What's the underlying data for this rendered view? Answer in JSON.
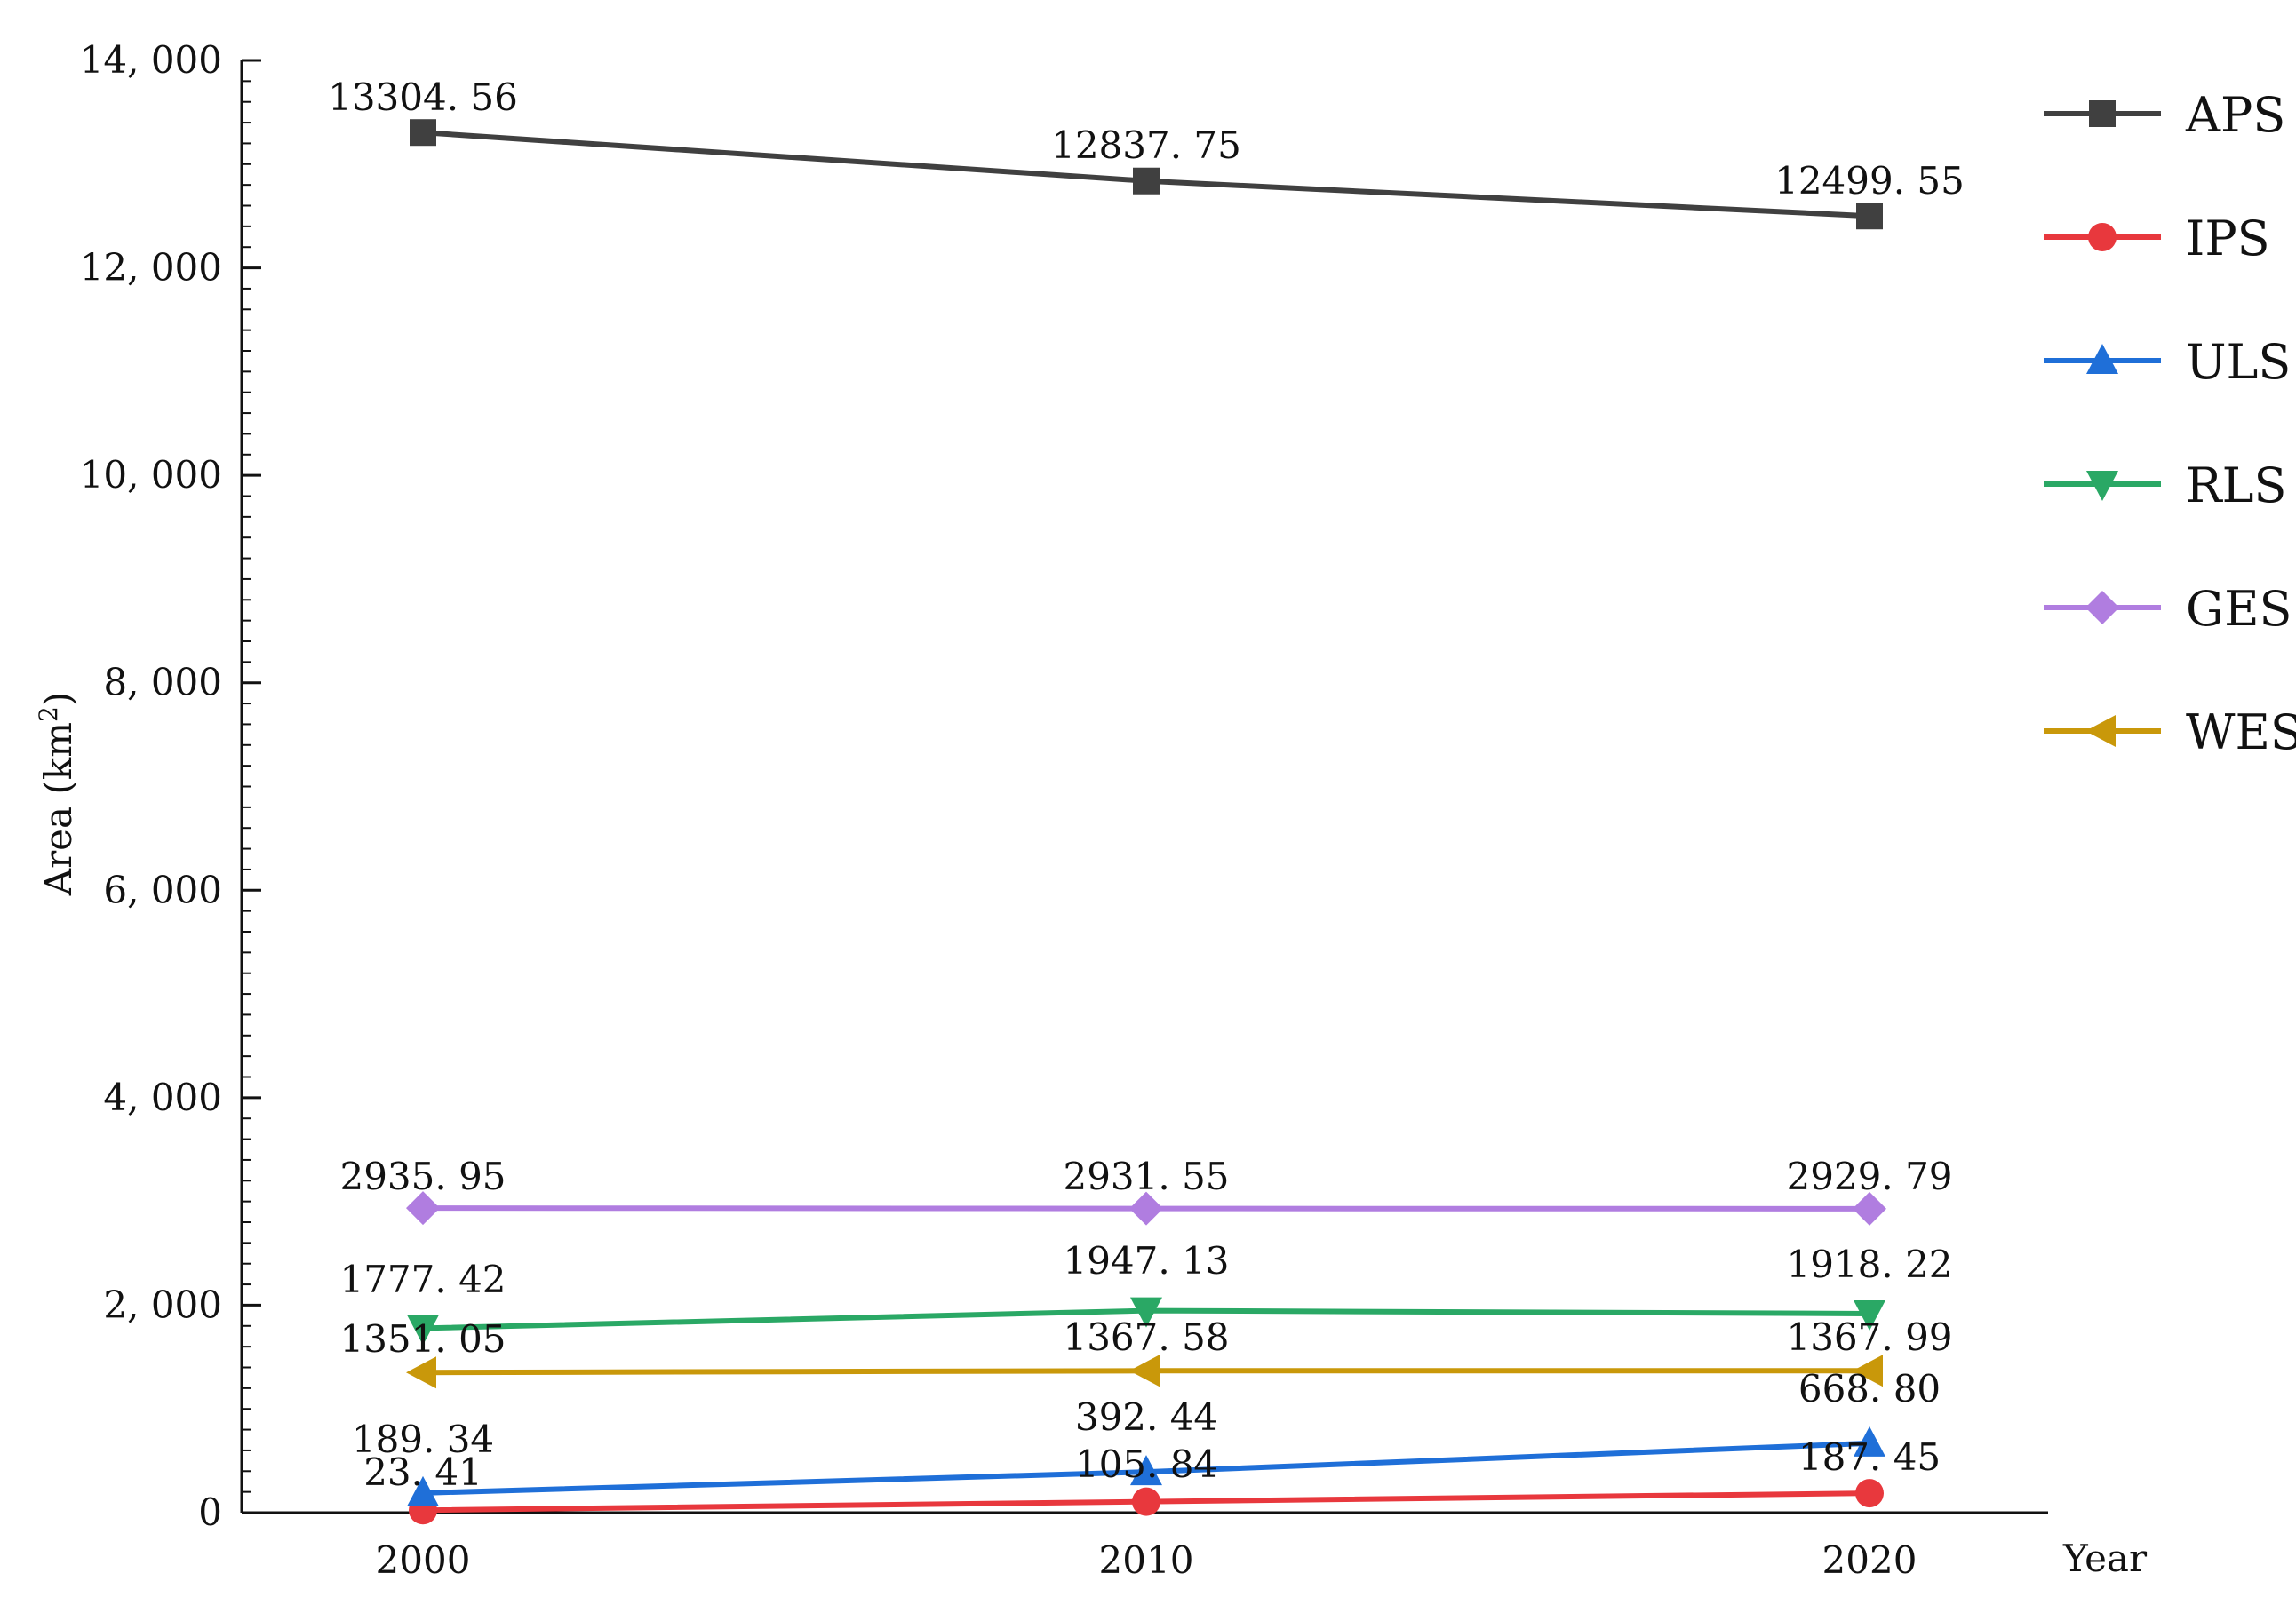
{
  "chart_data": {
    "type": "line",
    "title": "",
    "xlabel": "Year",
    "ylabel": "Area (km2)",
    "ylabel_base": "Area (km",
    "ylabel_sup": "2",
    "ylabel_close": ")",
    "x": [
      2000,
      2010,
      2020
    ],
    "x_tick_labels": [
      "2000",
      "2010",
      "2020"
    ],
    "ylim": [
      0,
      14000
    ],
    "y_ticks": [
      0,
      2000,
      4000,
      6000,
      8000,
      10000,
      12000,
      14000
    ],
    "y_tick_labels": [
      "0",
      "2, 000",
      "4, 000",
      "6, 000",
      "8, 000",
      "10, 000",
      "12, 000",
      "14, 000"
    ],
    "grid": false,
    "legend_position": "right",
    "series": [
      {
        "name": "APS",
        "color": "#404040",
        "marker": "square",
        "values": [
          13304.56,
          12837.75,
          12499.55
        ],
        "labels": [
          "13304. 56",
          "12837. 75",
          "12499. 55"
        ]
      },
      {
        "name": "IPS",
        "color": "#e8383d",
        "marker": "circle",
        "values": [
          23.41,
          105.84,
          187.45
        ],
        "labels": [
          "23. 41",
          "105. 84",
          "187. 45"
        ]
      },
      {
        "name": "ULS",
        "color": "#1f6fd8",
        "marker": "triangle-up",
        "values": [
          189.34,
          392.44,
          668.8
        ],
        "labels": [
          "189. 34",
          "392. 44",
          "668. 80"
        ]
      },
      {
        "name": "RLS",
        "color": "#2aa865",
        "marker": "triangle-down",
        "values": [
          1777.42,
          1947.13,
          1918.22
        ],
        "labels": [
          "1777. 42",
          "1947. 13",
          "1918. 22"
        ]
      },
      {
        "name": "GES",
        "color": "#b07de0",
        "marker": "diamond",
        "values": [
          2935.95,
          2931.55,
          2929.79
        ],
        "labels": [
          "2935. 95",
          "2931. 55",
          "2929. 79"
        ]
      },
      {
        "name": "WES",
        "color": "#c9980a",
        "marker": "triangle-left",
        "values": [
          1351.05,
          1367.58,
          1367.99
        ],
        "labels": [
          "1351. 05",
          "1367. 58",
          "1367. 99"
        ]
      }
    ]
  }
}
